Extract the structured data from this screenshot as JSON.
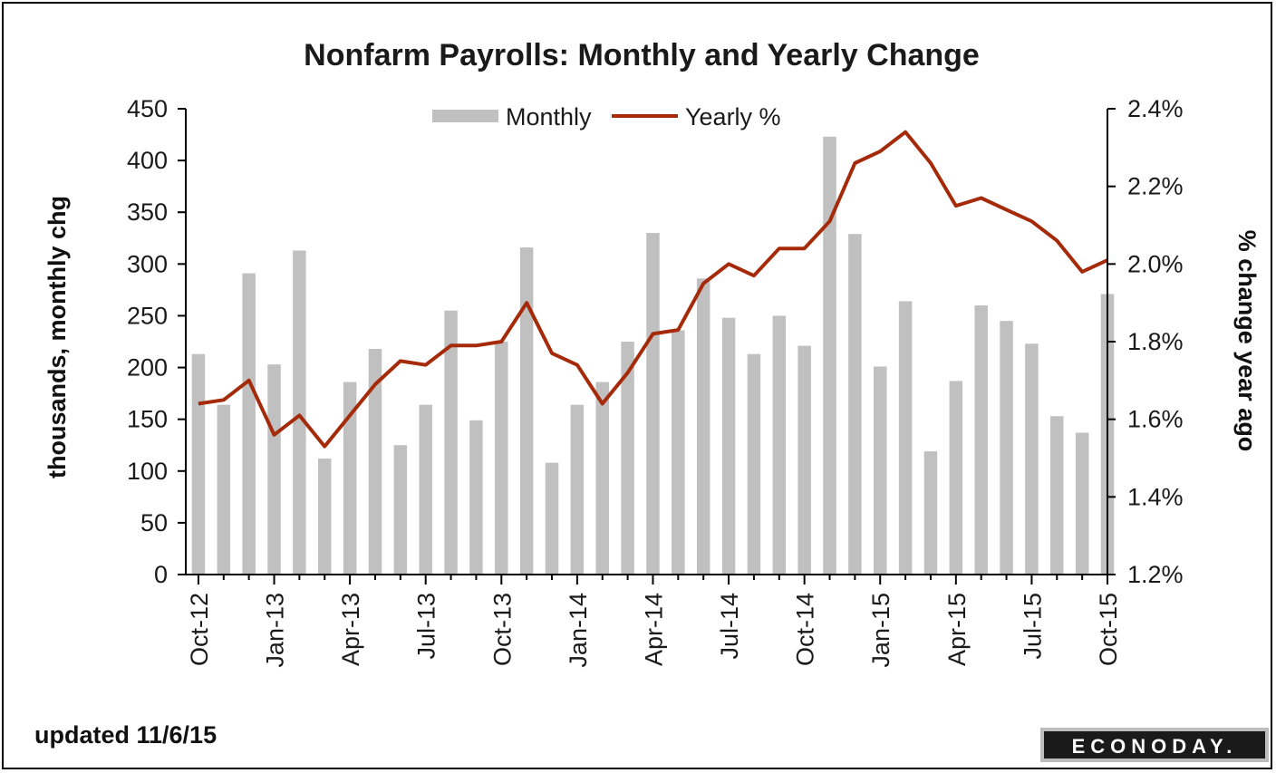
{
  "chart_data": {
    "type": "bar+line",
    "title": "Nonfarm Payrolls: Monthly and Yearly Change",
    "y_left_label": "thousands, monthly chg",
    "y_right_label": "% change year ago",
    "y_left_range": [
      0,
      450
    ],
    "y_left_ticks": [
      "0",
      "50",
      "100",
      "150",
      "200",
      "250",
      "300",
      "350",
      "400",
      "450"
    ],
    "y_right_range": [
      1.2,
      2.4
    ],
    "y_right_ticks": [
      "1.2%",
      "1.4%",
      "1.6%",
      "1.8%",
      "2.0%",
      "2.2%",
      "2.4%"
    ],
    "x_tick_labels": [
      "Oct-12",
      "Jan-13",
      "Apr-13",
      "Jul-13",
      "Oct-13",
      "Jan-14",
      "Apr-14",
      "Jul-14",
      "Oct-14",
      "Jan-15",
      "Apr-15",
      "Jul-15",
      "Oct-15"
    ],
    "months": [
      "Oct-12",
      "Nov-12",
      "Dec-12",
      "Jan-13",
      "Feb-13",
      "Mar-13",
      "Apr-13",
      "May-13",
      "Jun-13",
      "Jul-13",
      "Aug-13",
      "Sep-13",
      "Oct-13",
      "Nov-13",
      "Dec-13",
      "Jan-14",
      "Feb-14",
      "Mar-14",
      "Apr-14",
      "May-14",
      "Jun-14",
      "Jul-14",
      "Aug-14",
      "Sep-14",
      "Oct-14",
      "Nov-14",
      "Dec-14",
      "Jan-15",
      "Feb-15",
      "Mar-15",
      "Apr-15",
      "May-15",
      "Jun-15",
      "Jul-15",
      "Aug-15",
      "Sep-15",
      "Oct-15"
    ],
    "series": [
      {
        "name": "Monthly",
        "type": "bar",
        "axis": "left",
        "color": "#c0c0c0",
        "values": [
          213,
          164,
          291,
          203,
          313,
          112,
          186,
          218,
          125,
          164,
          255,
          149,
          225,
          316,
          108,
          164,
          186,
          225,
          330,
          236,
          286,
          248,
          213,
          250,
          221,
          423,
          329,
          201,
          264,
          119,
          187,
          260,
          245,
          223,
          153,
          137,
          271
        ]
      },
      {
        "name": "Yearly %",
        "type": "line",
        "axis": "right",
        "color": "#a52a0a",
        "values": [
          1.64,
          1.65,
          1.7,
          1.56,
          1.61,
          1.53,
          1.61,
          1.69,
          1.75,
          1.74,
          1.79,
          1.79,
          1.8,
          1.9,
          1.77,
          1.74,
          1.64,
          1.72,
          1.82,
          1.83,
          1.95,
          2.0,
          1.97,
          2.04,
          2.04,
          2.11,
          2.26,
          2.29,
          2.34,
          2.26,
          2.15,
          2.17,
          2.14,
          2.11,
          2.06,
          1.98,
          2.01
        ]
      }
    ],
    "legend": [
      "Monthly",
      "Yearly %"
    ],
    "legend_position": "top-center"
  },
  "footnote": "updated 11/6/15",
  "logo_text": "ECONODAY."
}
